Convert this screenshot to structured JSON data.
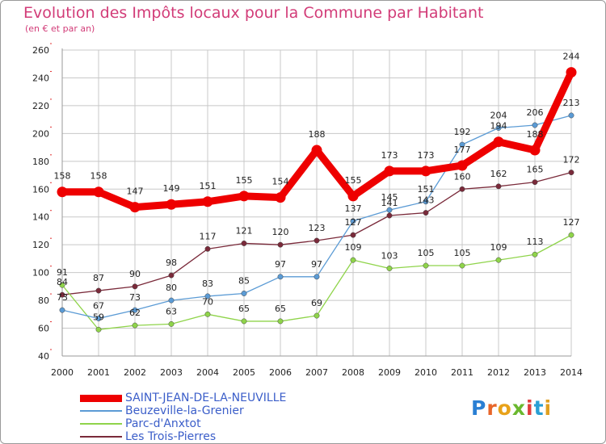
{
  "title": "Evolution des Impôts locaux pour la Commune par Habitant",
  "subtitle": "(en € et par an)",
  "colors": {
    "title": "#d23c78",
    "grid": "#c8c8c8",
    "axis_tick_marks": "#e03030",
    "legend_text": "#3b5ec9"
  },
  "logo": {
    "text": "Proxiti",
    "letter_colors": [
      "#2a7fd4",
      "#e8662a",
      "#e8a21a",
      "#6ab82e",
      "#e03c3c",
      "#2a9fd4",
      "#e0a020"
    ]
  },
  "chart_data": {
    "type": "line",
    "title": "Evolution des Impôts locaux pour la Commune par Habitant",
    "subtitle": "(en € et par an)",
    "xlabel": "",
    "ylabel": "",
    "x": [
      2000,
      2001,
      2002,
      2003,
      2004,
      2005,
      2006,
      2007,
      2008,
      2009,
      2010,
      2011,
      2012,
      2013,
      2014
    ],
    "x_labels": [
      "2000",
      "2001",
      "2002",
      "2003",
      "2004",
      "2005",
      "2006",
      "2007",
      "2008",
      "2009",
      "2010",
      "2011",
      "2012",
      "2013",
      "2014"
    ],
    "ylim": [
      40,
      260
    ],
    "yticks": [
      40,
      60,
      80,
      100,
      120,
      140,
      160,
      180,
      200,
      220,
      240,
      260
    ],
    "grid": true,
    "legend_position": "bottom-left",
    "series": [
      {
        "name": "SAINT-JEAN-DE-LA-NEUVILLE",
        "color": "#ee0000",
        "values": [
          158,
          158,
          147,
          149,
          151,
          155,
          154,
          188,
          155,
          173,
          173,
          177,
          194,
          188,
          244
        ],
        "labels": [
          "158",
          "158",
          "147",
          "149",
          "151",
          "155",
          "154",
          "188",
          "155",
          "173",
          "173",
          "177",
          "194",
          "188",
          "244"
        ]
      },
      {
        "name": "Beuzeville-la-Grenier",
        "color": "#5b9bd5",
        "values": [
          73,
          67,
          73,
          80,
          83,
          85,
          97,
          97,
          137,
          145,
          151,
          192,
          204,
          206,
          213
        ],
        "labels": [
          "73",
          "67",
          "73",
          "80",
          "83",
          "85",
          "97",
          "97",
          "137",
          "145",
          "151",
          "192",
          "204",
          "206",
          "213"
        ]
      },
      {
        "name": "Parc-d'Anxtot",
        "color": "#8fd44a",
        "values": [
          91,
          59,
          62,
          63,
          70,
          65,
          65,
          69,
          109,
          103,
          105,
          105,
          109,
          113,
          127
        ],
        "labels": [
          "91",
          "59",
          "62",
          "63",
          "70",
          "65",
          "65",
          "69",
          "109",
          "103",
          "105",
          "105",
          "109",
          "113",
          "127"
        ]
      },
      {
        "name": "Les Trois-Pierres",
        "color": "#7a2a3a",
        "values": [
          84,
          87,
          90,
          98,
          117,
          121,
          120,
          123,
          127,
          141,
          143,
          160,
          162,
          165,
          172
        ],
        "labels": [
          "84",
          "87",
          "90",
          "98",
          "117",
          "121",
          "120",
          "123",
          "127",
          "141",
          "143",
          "160",
          "162",
          "165",
          "172"
        ]
      }
    ]
  }
}
